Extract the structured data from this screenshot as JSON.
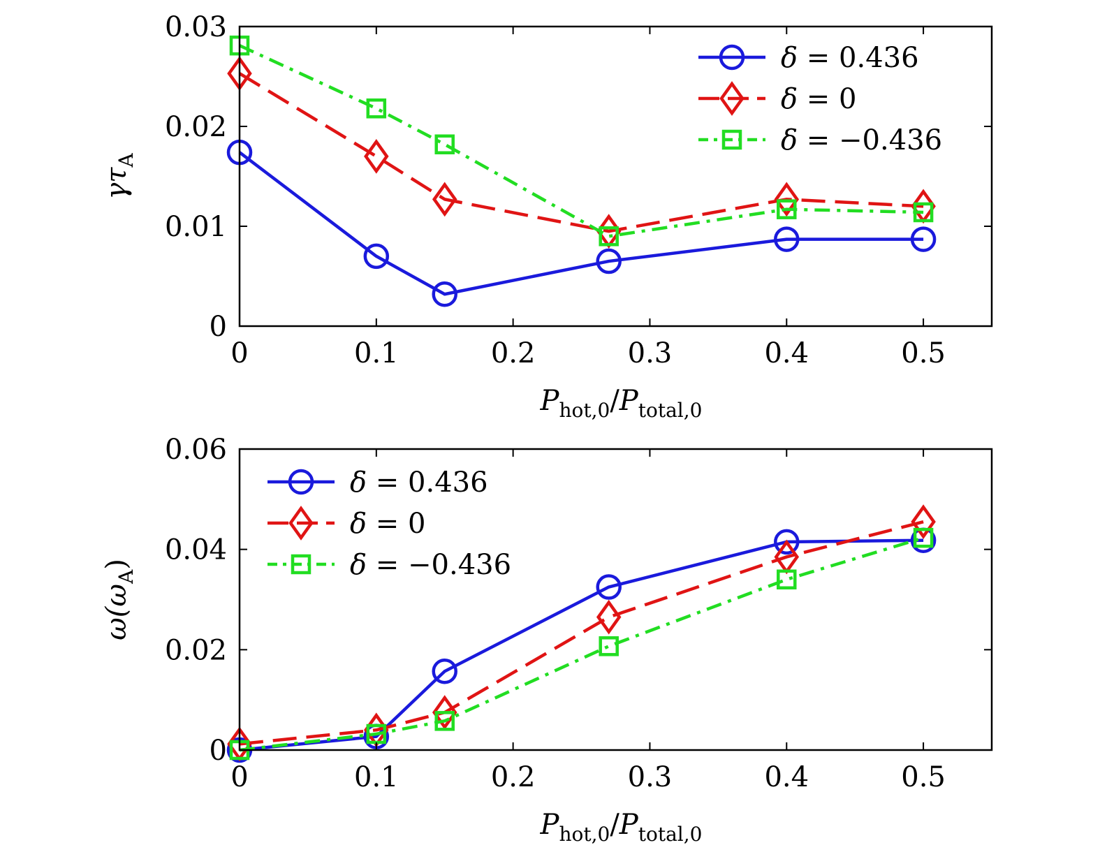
{
  "chart_data": [
    {
      "type": "line",
      "id": "growth",
      "ylabel_main": "γτ",
      "ylabel_sub": "A",
      "xlabel_main": "P",
      "xlabel_sub1": "hot,0",
      "xlabel_sep": "/",
      "xlabel_main2": "P",
      "xlabel_sub2": "total,0",
      "xlim": [
        0,
        0.55
      ],
      "ylim": [
        0,
        0.03
      ],
      "xticks": [
        0,
        0.1,
        0.2,
        0.3,
        0.4,
        0.5
      ],
      "xtick_labels": [
        "0",
        "0.1",
        "0.2",
        "0.3",
        "0.4",
        "0.5"
      ],
      "yticks": [
        0,
        0.01,
        0.02,
        0.03
      ],
      "ytick_labels": [
        "0",
        "0.01",
        "0.02",
        "0.03"
      ],
      "legend_position": "top-right",
      "x": [
        0,
        0.1,
        0.15,
        0.27,
        0.4,
        0.5
      ],
      "series": [
        {
          "name": "δ = 0.436",
          "symbol": "δ",
          "rest": " = 0.436",
          "color": "#1a1adc",
          "marker": "circle",
          "dash": "solid",
          "values": [
            0.0174,
            0.007,
            0.0032,
            0.0065,
            0.0087,
            0.0087
          ]
        },
        {
          "name": "δ = 0",
          "symbol": "δ",
          "rest": " = 0",
          "color": "#e01414",
          "marker": "diamond",
          "dash": "dashed",
          "values": [
            0.0253,
            0.017,
            0.0127,
            0.0095,
            0.0127,
            0.012
          ]
        },
        {
          "name": "δ = −0.436",
          "symbol": "δ",
          "rest": " = −0.436",
          "color": "#22dd22",
          "marker": "square",
          "dash": "dashdot",
          "values": [
            0.0281,
            0.0218,
            0.0182,
            0.009,
            0.0117,
            0.0114
          ]
        }
      ]
    },
    {
      "type": "line",
      "id": "frequency",
      "ylabel_main": "ω(ω",
      "ylabel_sub": "A",
      "ylabel_tail": ")",
      "xlabel_main": "P",
      "xlabel_sub1": "hot,0",
      "xlabel_sep": "/",
      "xlabel_main2": "P",
      "xlabel_sub2": "total,0",
      "xlim": [
        0,
        0.55
      ],
      "ylim": [
        0,
        0.06
      ],
      "xticks": [
        0,
        0.1,
        0.2,
        0.3,
        0.4,
        0.5
      ],
      "xtick_labels": [
        "0",
        "0.1",
        "0.2",
        "0.3",
        "0.4",
        "0.5"
      ],
      "yticks": [
        0,
        0.02,
        0.04,
        0.06
      ],
      "ytick_labels": [
        "0",
        "0.02",
        "0.04",
        "0.06"
      ],
      "legend_position": "top-left",
      "x": [
        0,
        0.1,
        0.15,
        0.27,
        0.4,
        0.5
      ],
      "series": [
        {
          "name": "δ = 0.436",
          "symbol": "δ",
          "rest": " = 0.436",
          "color": "#1a1adc",
          "marker": "circle",
          "dash": "solid",
          "values": [
            0.0,
            0.0027,
            0.0157,
            0.0325,
            0.0415,
            0.0418
          ]
        },
        {
          "name": "δ = 0",
          "symbol": "δ",
          "rest": " = 0",
          "color": "#e01414",
          "marker": "diamond",
          "dash": "dashed",
          "values": [
            0.0012,
            0.004,
            0.0075,
            0.0265,
            0.0385,
            0.0455
          ]
        },
        {
          "name": "δ = −0.436",
          "symbol": "δ",
          "rest": " = −0.436",
          "color": "#22dd22",
          "marker": "square",
          "dash": "dashdot",
          "values": [
            0.0,
            0.0032,
            0.0058,
            0.0207,
            0.034,
            0.0423
          ]
        }
      ]
    }
  ]
}
